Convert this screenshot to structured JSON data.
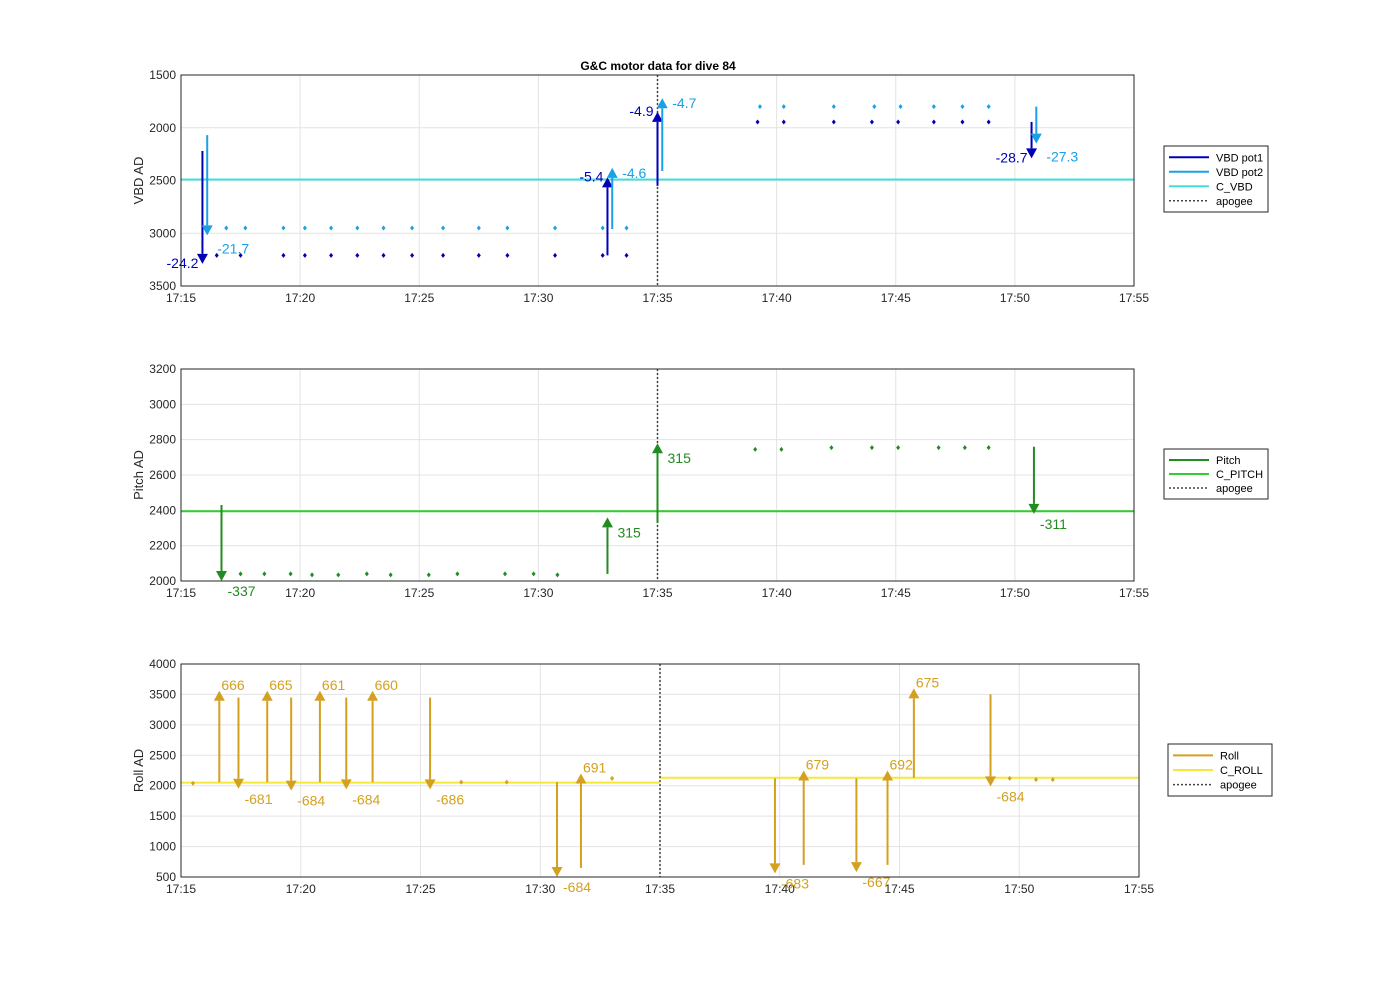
{
  "figure_title": "G&C motor data for dive 84",
  "colors": {
    "vbd_pot1": "#0000b8",
    "vbd_pot2": "#1aa0e6",
    "c_vbd": "#40e0e0",
    "pitch": "#228b22",
    "c_pitch": "#32cd32",
    "roll": "#d4a020",
    "c_roll": "#f5e83a",
    "apogee": "#444444",
    "grid": "#e3e3e3"
  },
  "chart_data": [
    {
      "type": "line",
      "id": "vbd",
      "title": "G&C motor data for dive 84",
      "xlabel": "",
      "ylabel": "VBD AD",
      "y_reversed": true,
      "xlim": [
        0,
        40
      ],
      "ylim": [
        1500,
        3500
      ],
      "x_ticks": [
        "17:15",
        "17:20",
        "17:25",
        "17:30",
        "17:35",
        "17:40",
        "17:45",
        "17:50",
        "17:55"
      ],
      "y_ticks": [
        1500,
        2000,
        2500,
        3000,
        3500
      ],
      "grid": true,
      "legend_placement": "outside-right",
      "legend": [
        "VBD pot1",
        "VBD pot2",
        "C_VBD",
        "apogee"
      ],
      "apogee_x": 20,
      "reference_lines": [
        {
          "name": "C_VBD",
          "y": 2490,
          "color_key": "c_vbd"
        }
      ],
      "series": [
        {
          "name": "VBD pot1",
          "color_key": "vbd_pot1",
          "x": [
            1.5,
            2.5,
            4.3,
            5.2,
            6.3,
            7.4,
            8.5,
            9.7,
            11.0,
            12.5,
            13.7,
            15.7,
            17.7,
            18.7,
            24.2,
            25.3,
            27.4,
            29.0,
            30.1,
            31.6,
            32.8,
            33.9
          ],
          "y": [
            3210,
            3210,
            3210,
            3210,
            3210,
            3210,
            3210,
            3210,
            3210,
            3210,
            3210,
            3210,
            3210,
            3210,
            1945,
            1945,
            1945,
            1945,
            1945,
            1945,
            1945,
            1945
          ]
        },
        {
          "name": "VBD pot2",
          "color_key": "vbd_pot2",
          "x": [
            1.9,
            2.7,
            4.3,
            5.2,
            6.3,
            7.4,
            8.5,
            9.7,
            11.0,
            12.5,
            13.7,
            15.7,
            17.7,
            18.7,
            24.3,
            25.3,
            27.4,
            29.1,
            30.2,
            31.6,
            32.8,
            33.9
          ],
          "y": [
            2950,
            2950,
            2950,
            2950,
            2950,
            2950,
            2950,
            2950,
            2950,
            2950,
            2950,
            2950,
            2950,
            2950,
            1800,
            1800,
            1800,
            1800,
            1800,
            1800,
            1800,
            1800
          ]
        }
      ],
      "arrows": [
        {
          "series": "VBD pot1",
          "x": 0.9,
          "y_from": 2220,
          "y_to": 3290,
          "label": "-24.2",
          "label_side": "left"
        },
        {
          "series": "VBD pot2",
          "x": 1.1,
          "y_from": 2070,
          "y_to": 3020,
          "label": "-21.7",
          "label_side": "right"
        },
        {
          "series": "VBD pot1",
          "x": 17.9,
          "y_from": 3210,
          "y_to": 2470,
          "label": "-5.4",
          "label_side": "left"
        },
        {
          "series": "VBD pot2",
          "x": 18.1,
          "y_from": 2960,
          "y_to": 2380,
          "label": "-4.6",
          "label_side": "right"
        },
        {
          "series": "VBD pot1",
          "x": 20.0,
          "y_from": 2550,
          "y_to": 1850,
          "label": "-4.9",
          "label_side": "left"
        },
        {
          "series": "VBD pot2",
          "x": 20.2,
          "y_from": 2410,
          "y_to": 1720,
          "label": "-4.7",
          "label_side": "right"
        },
        {
          "series": "VBD pot1",
          "x": 35.7,
          "y_from": 1945,
          "y_to": 2290,
          "label": "-28.7",
          "label_side": "left"
        },
        {
          "series": "VBD pot2",
          "x": 35.9,
          "y_from": 1800,
          "y_to": 2150,
          "label": "-27.3",
          "label_side": "right"
        }
      ]
    },
    {
      "type": "line",
      "id": "pitch",
      "xlabel": "",
      "ylabel": "Pitch AD",
      "y_reversed": false,
      "xlim": [
        0,
        40
      ],
      "ylim": [
        2000,
        3200
      ],
      "x_ticks": [
        "17:15",
        "17:20",
        "17:25",
        "17:30",
        "17:35",
        "17:40",
        "17:45",
        "17:50",
        "17:55"
      ],
      "y_ticks": [
        2000,
        2200,
        2400,
        2600,
        2800,
        3000,
        3200
      ],
      "grid": true,
      "legend_placement": "outside-right",
      "legend": [
        "Pitch",
        "C_PITCH",
        "apogee"
      ],
      "apogee_x": 20,
      "reference_lines": [
        {
          "name": "C_PITCH",
          "y": 2395,
          "color_key": "c_pitch"
        }
      ],
      "series": [
        {
          "name": "Pitch",
          "color_key": "pitch",
          "x": [
            2.5,
            3.5,
            4.6,
            5.5,
            6.6,
            7.8,
            8.8,
            10.4,
            11.6,
            13.6,
            14.8,
            15.8,
            24.1,
            25.2,
            27.3,
            29.0,
            30.1,
            31.8,
            32.9,
            33.9
          ],
          "y": [
            2040,
            2040,
            2040,
            2035,
            2035,
            2040,
            2035,
            2035,
            2040,
            2040,
            2040,
            2035,
            2745,
            2745,
            2755,
            2755,
            2755,
            2755,
            2755,
            2755
          ]
        }
      ],
      "arrows": [
        {
          "series": "Pitch",
          "x": 1.7,
          "y_from": 2430,
          "y_to": 2000,
          "label": "-337",
          "label_side": "below-right"
        },
        {
          "series": "Pitch",
          "x": 17.9,
          "y_from": 2040,
          "y_to": 2360,
          "label": "315",
          "label_side": "right"
        },
        {
          "series": "Pitch",
          "x": 20.0,
          "y_from": 2330,
          "y_to": 2780,
          "label": "315",
          "label_side": "right"
        },
        {
          "series": "Pitch",
          "x": 35.8,
          "y_from": 2760,
          "y_to": 2380,
          "label": "-311",
          "label_side": "below-right"
        }
      ]
    },
    {
      "type": "line",
      "id": "roll",
      "xlabel": "",
      "ylabel": "Roll AD",
      "y_reversed": false,
      "xlim": [
        0,
        40
      ],
      "ylim": [
        500,
        4000
      ],
      "x_ticks": [
        "17:15",
        "17:20",
        "17:25",
        "17:30",
        "17:35",
        "17:40",
        "17:45",
        "17:50",
        "17:55"
      ],
      "y_ticks": [
        500,
        1000,
        1500,
        2000,
        2500,
        3000,
        3500,
        4000
      ],
      "grid": true,
      "legend_placement": "outside-right",
      "legend": [
        "Roll",
        "C_ROLL",
        "apogee"
      ],
      "apogee_x": 20,
      "reference_lines": [
        {
          "name": "C_ROLL",
          "x_from": 0,
          "x_to": 20,
          "y": 2050,
          "color_key": "c_roll"
        },
        {
          "name": "C_ROLL",
          "x_from": 20,
          "x_to": 40,
          "y": 2130,
          "color_key": "c_roll"
        }
      ],
      "series": [
        {
          "name": "Roll",
          "color_key": "roll",
          "x": [
            0.5,
            11.7,
            13.6,
            18.0,
            34.6,
            35.7,
            36.4
          ],
          "y": [
            2040,
            2060,
            2060,
            2120,
            2120,
            2100,
            2100
          ]
        }
      ],
      "arrows": [
        {
          "series": "Roll",
          "x": 1.6,
          "y_from": 2060,
          "y_to": 3560,
          "label": "666",
          "label_side": "right-top"
        },
        {
          "series": "Roll",
          "x": 2.4,
          "y_from": 3450,
          "y_to": 1950,
          "label": "-681",
          "label_side": "below-right"
        },
        {
          "series": "Roll",
          "x": 3.6,
          "y_from": 2060,
          "y_to": 3560,
          "label": "665",
          "label_side": "right-top"
        },
        {
          "series": "Roll",
          "x": 4.6,
          "y_from": 3450,
          "y_to": 1920,
          "label": "-684",
          "label_side": "below-right"
        },
        {
          "series": "Roll",
          "x": 5.8,
          "y_from": 2060,
          "y_to": 3560,
          "label": "661",
          "label_side": "right-top"
        },
        {
          "series": "Roll",
          "x": 6.9,
          "y_from": 3450,
          "y_to": 1940,
          "label": "-684",
          "label_side": "below-right"
        },
        {
          "series": "Roll",
          "x": 8.0,
          "y_from": 2060,
          "y_to": 3560,
          "label": "660",
          "label_side": "right-top"
        },
        {
          "series": "Roll",
          "x": 10.4,
          "y_from": 3450,
          "y_to": 1940,
          "label": "-686",
          "label_side": "below-right"
        },
        {
          "series": "Roll",
          "x": 15.7,
          "y_from": 2060,
          "y_to": 500,
          "label": "-684",
          "label_side": "below-right"
        },
        {
          "series": "Roll",
          "x": 16.7,
          "y_from": 650,
          "y_to": 2200,
          "label": "691",
          "label_side": "right-top"
        },
        {
          "series": "Roll",
          "x": 24.8,
          "y_from": 2120,
          "y_to": 560,
          "label": "-683",
          "label_side": "below-right"
        },
        {
          "series": "Roll",
          "x": 26.0,
          "y_from": 700,
          "y_to": 2250,
          "label": "679",
          "label_side": "right-top"
        },
        {
          "series": "Roll",
          "x": 28.2,
          "y_from": 2120,
          "y_to": 580,
          "label": "-667",
          "label_side": "below-right"
        },
        {
          "series": "Roll",
          "x": 29.5,
          "y_from": 700,
          "y_to": 2250,
          "label": "692",
          "label_side": "right-top"
        },
        {
          "series": "Roll",
          "x": 30.6,
          "y_from": 2130,
          "y_to": 3600,
          "label": "675",
          "label_side": "right-top"
        },
        {
          "series": "Roll",
          "x": 33.8,
          "y_from": 3500,
          "y_to": 1990,
          "label": "-684",
          "label_side": "below-right"
        }
      ]
    }
  ]
}
